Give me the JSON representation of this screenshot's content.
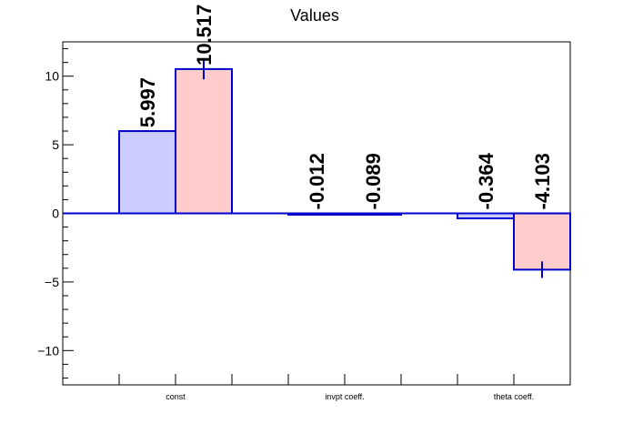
{
  "chart_data": {
    "type": "bar",
    "title": "Values",
    "xlabel": "",
    "ylabel": "",
    "categories": [
      "const",
      "invpt coeff.",
      "theta coeff."
    ],
    "series": [
      {
        "color_fill": "#ccccff",
        "color_stroke": "#0000cc",
        "values": [
          5.997,
          -0.012,
          -0.364
        ],
        "errors": [
          0,
          0,
          0
        ],
        "labels": [
          "5.997",
          "-0.012",
          "-0.364"
        ]
      },
      {
        "color_fill": "#ffcccc",
        "color_stroke": "#0000cc",
        "values": [
          10.517,
          -0.089,
          -4.103
        ],
        "errors": [
          0.75,
          0.05,
          0.6
        ],
        "labels": [
          "10.517",
          "-0.089",
          "-4.103"
        ]
      }
    ],
    "ylim": [
      -12.5,
      12.5
    ],
    "yticks": [
      -10,
      -5,
      0,
      5,
      10
    ],
    "ytick_labels": [
      "−10",
      "−5",
      "0",
      "5",
      "10"
    ],
    "minor_ytick_step": 1,
    "zero_line": true,
    "grid": false,
    "legend": "none"
  }
}
